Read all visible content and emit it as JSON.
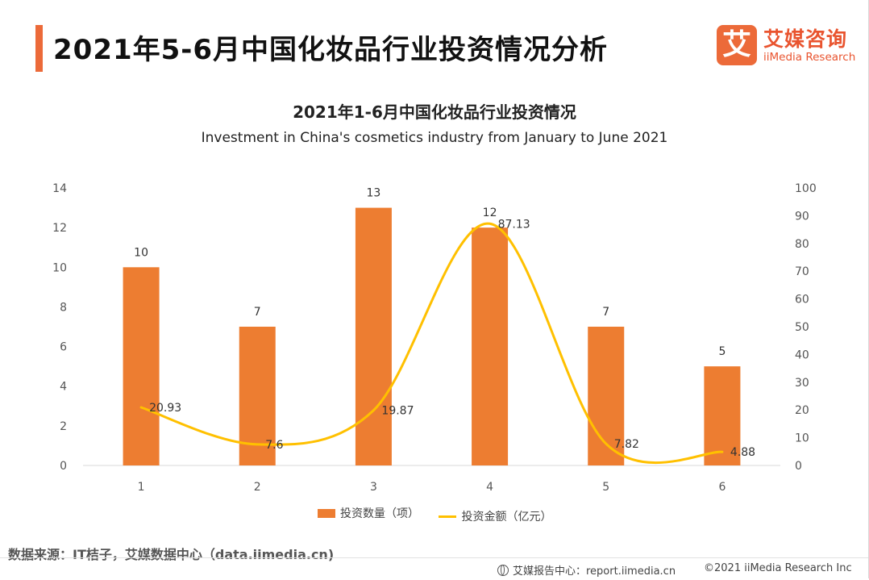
{
  "header": {
    "title": "2021年5-6月中国化妆品行业投资情况分析"
  },
  "logo": {
    "mark": "艾",
    "name_cn": "艾媒咨询",
    "name_en": "iiMedia Research",
    "icon": "iimedia-logo-icon"
  },
  "chart_data": {
    "type": "bar",
    "title": "2021年1-6月中国化妆品行业投资情况",
    "subtitle": "Investment in China's cosmetics industry from January to June 2021",
    "categories": [
      "1",
      "2",
      "3",
      "4",
      "5",
      "6"
    ],
    "series": [
      {
        "name": "投资数量（项）",
        "type": "bar",
        "axis": "left",
        "color": "#ed7d31",
        "values": [
          10,
          7,
          13,
          12,
          7,
          5
        ],
        "labels": [
          "10",
          "7",
          "13",
          "12",
          "7",
          "5"
        ]
      },
      {
        "name": "投资金额（亿元）",
        "type": "line",
        "axis": "right",
        "smooth": true,
        "color": "#ffc000",
        "values": [
          20.93,
          7.6,
          19.87,
          87.13,
          7.82,
          4.88
        ],
        "labels": [
          "20.93",
          "7.6",
          "19.87",
          "87.13",
          "7.82",
          "4.88"
        ]
      }
    ],
    "y_left": {
      "min": 0,
      "max": 14,
      "step": 2,
      "ticks": [
        "0",
        "2",
        "4",
        "6",
        "8",
        "10",
        "12",
        "14"
      ]
    },
    "y_right": {
      "min": 0,
      "max": 100,
      "step": 10,
      "ticks": [
        "0",
        "10",
        "20",
        "30",
        "40",
        "50",
        "60",
        "70",
        "80",
        "90",
        "100"
      ]
    },
    "grid": false,
    "legend_position": "bottom-center"
  },
  "source": "数据来源：IT桔子，艾媒数据中心（data.iimedia.cn)",
  "footer": {
    "left": "艾媒报告中心：report.iimedia.cn",
    "left_icon": "globe-icon",
    "right": "©2021  iiMedia Research  Inc"
  }
}
